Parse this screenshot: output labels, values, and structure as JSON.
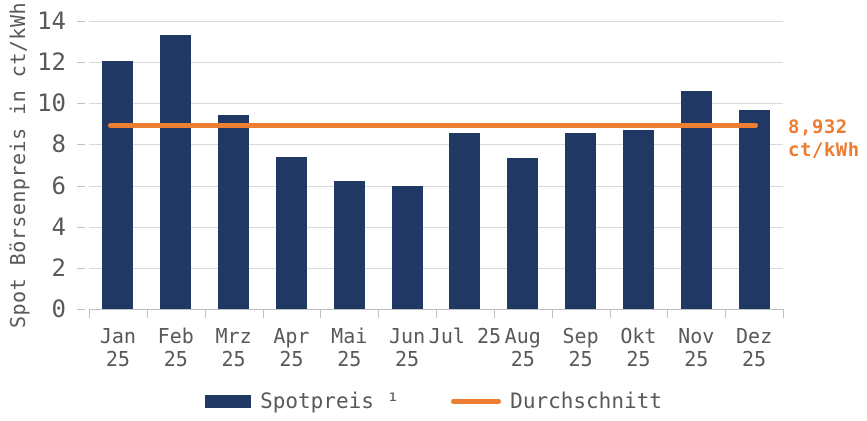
{
  "chart_data": {
    "type": "bar",
    "title": "",
    "ylabel": "Spot Börsenpreis in ct/kWh",
    "categories": [
      "Jan 25",
      "Feb 25",
      "Mrz 25",
      "Apr 25",
      "Mai 25",
      "Jun 25",
      "Jul 25",
      "Aug 25",
      "Sep 25",
      "Okt 25",
      "Nov 25",
      "Dez 25"
    ],
    "categories_display": [
      [
        "Jan",
        "25"
      ],
      [
        "Feb",
        "25"
      ],
      [
        "Mrz",
        "25"
      ],
      [
        "Apr",
        "25"
      ],
      [
        "Mai",
        "25"
      ],
      [
        "Jun",
        "25"
      ],
      [
        "Jul 25"
      ],
      [
        "Aug",
        "25"
      ],
      [
        "Sep",
        "25"
      ],
      [
        "Okt",
        "25"
      ],
      [
        "Nov",
        "25"
      ],
      [
        "Dez",
        "25"
      ]
    ],
    "series": [
      {
        "name": "Spotpreis ¹",
        "type": "bar",
        "color": "#1f3864",
        "values": [
          12.05,
          13.3,
          9.45,
          7.4,
          6.2,
          6.0,
          8.55,
          7.35,
          8.55,
          8.7,
          10.6,
          9.65
        ]
      },
      {
        "name": "Durchschnitt",
        "type": "line",
        "color": "#ed7d31",
        "value": 8.932
      }
    ],
    "ylim": [
      0,
      14
    ],
    "yticks": [
      0,
      2,
      4,
      6,
      8,
      10,
      12,
      14
    ],
    "grid": true,
    "legend_position": "bottom",
    "annotation": {
      "line1": "8,932",
      "line2": "ct/kWh",
      "value": 8.932,
      "color": "#ed7d31"
    }
  },
  "colors": {
    "bar": "#1f3864",
    "average_line": "#ed7d31",
    "gridline": "#d9d9d9",
    "axis": "#bfbfbf",
    "text": "#595959"
  }
}
